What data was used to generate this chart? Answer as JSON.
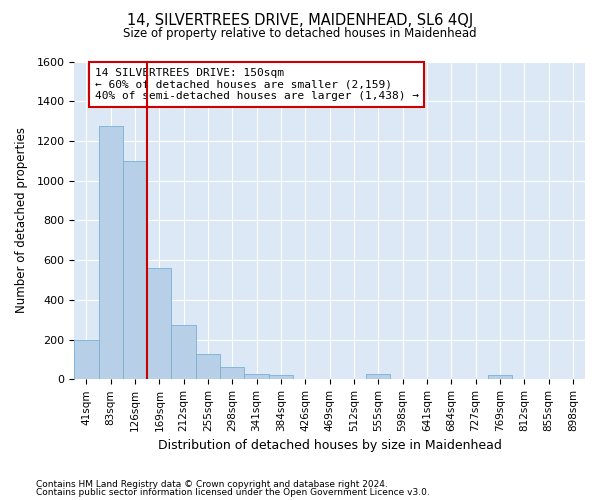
{
  "title": "14, SILVERTREES DRIVE, MAIDENHEAD, SL6 4QJ",
  "subtitle": "Size of property relative to detached houses in Maidenhead",
  "xlabel": "Distribution of detached houses by size in Maidenhead",
  "ylabel": "Number of detached properties",
  "footnote1": "Contains HM Land Registry data © Crown copyright and database right 2024.",
  "footnote2": "Contains public sector information licensed under the Open Government Licence v3.0.",
  "bar_labels": [
    "41sqm",
    "83sqm",
    "126sqm",
    "169sqm",
    "212sqm",
    "255sqm",
    "298sqm",
    "341sqm",
    "384sqm",
    "426sqm",
    "469sqm",
    "512sqm",
    "555sqm",
    "598sqm",
    "641sqm",
    "684sqm",
    "727sqm",
    "769sqm",
    "812sqm",
    "855sqm",
    "898sqm"
  ],
  "bar_values": [
    200,
    1275,
    1100,
    560,
    275,
    125,
    60,
    25,
    20,
    0,
    0,
    0,
    25,
    0,
    0,
    0,
    0,
    20,
    0,
    0,
    0
  ],
  "bar_color": "#b8cfe8",
  "bar_edge_color": "#7aafd4",
  "red_line_x": 2.5,
  "annotation_line1": "14 SILVERTREES DRIVE: 150sqm",
  "annotation_line2": "← 60% of detached houses are smaller (2,159)",
  "annotation_line3": "40% of semi-detached houses are larger (1,438) →",
  "ylim": [
    0,
    1600
  ],
  "yticks": [
    0,
    200,
    400,
    600,
    800,
    1000,
    1200,
    1400,
    1600
  ],
  "figure_bg": "#ffffff",
  "plot_bg": "#dce8f5",
  "grid_color": "#ffffff",
  "red_line_color": "#cc0000"
}
